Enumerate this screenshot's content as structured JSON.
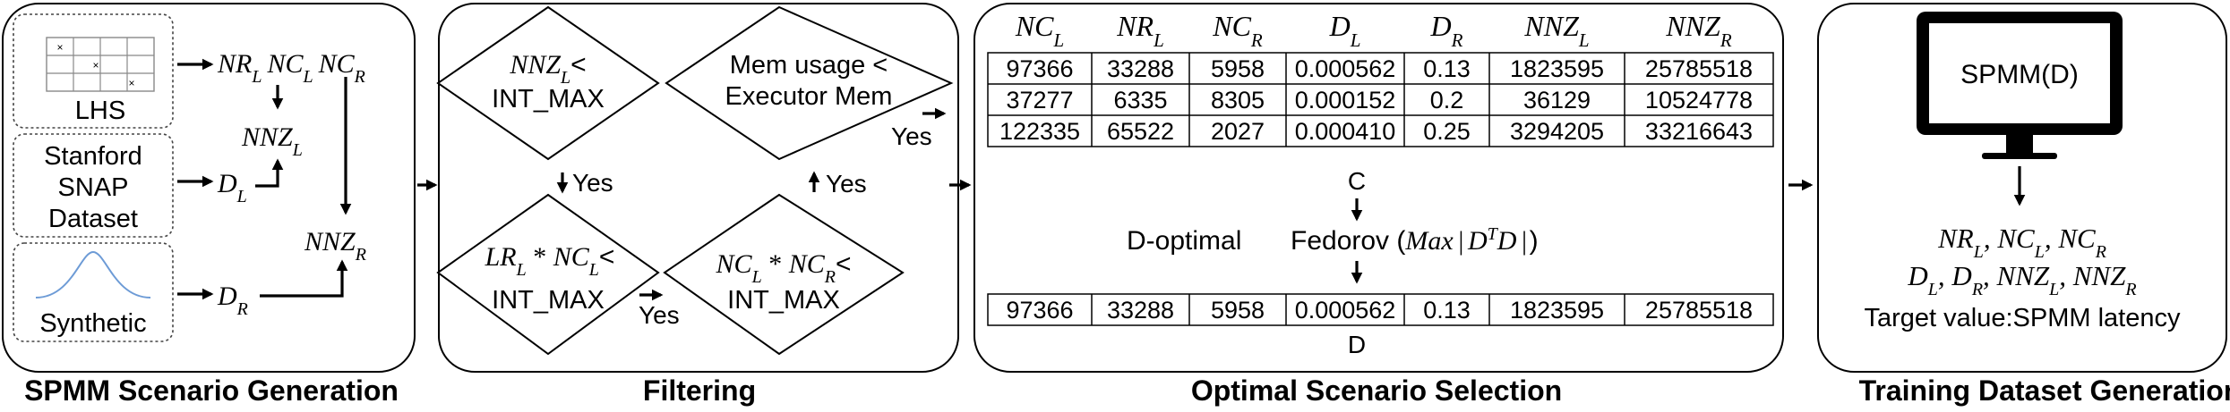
{
  "stages": {
    "generation": "SPMM Scenario Generation",
    "filtering": "Filtering",
    "selection": "Optimal Scenario Selection",
    "training": "Training Dataset Generation"
  },
  "generation": {
    "lhs": "LHS",
    "lhs_mark": "×",
    "snap": [
      "Stanford",
      "SNAP",
      "Dataset"
    ],
    "synthetic": "Synthetic",
    "vars": {
      "NR": "NR",
      "NC": "NC",
      "NNZ": "NNZ",
      "D": "D",
      "sub_L": "L",
      "sub_R": "R"
    }
  },
  "filtering": {
    "mem_condition": [
      "Mem usage <",
      "Executor Mem"
    ],
    "int_max": "INT_MAX",
    "lt": "<",
    "star": " * ",
    "LR": "LR",
    "yes": "Yes"
  },
  "selection": {
    "table_headers": [
      {
        "base": "NC",
        "sub": "L"
      },
      {
        "base": "NR",
        "sub": "L"
      },
      {
        "base": "NC",
        "sub": "R"
      },
      {
        "base": "D",
        "sub": "L"
      },
      {
        "base": "D",
        "sub": "R"
      },
      {
        "base": "NNZ",
        "sub": "L"
      },
      {
        "base": "NNZ",
        "sub": "R"
      }
    ],
    "table_c": [
      [
        "97366",
        "33288",
        "5958",
        "0.000562",
        "0.13",
        "1823595",
        "25785518"
      ],
      [
        "37277",
        "6335",
        "8305",
        "0.000152",
        "0.2",
        "36129",
        "10524778"
      ],
      [
        "122335",
        "65522",
        "2027",
        "0.000410",
        "0.25",
        "3294205",
        "33216643"
      ]
    ],
    "label_c": "C",
    "method_d_optimal": "D-optimal",
    "method_fedorov": "Fedorov (",
    "formula": {
      "max": "Max",
      "bar": "|",
      "d": "D",
      "sup_t": "T",
      "close": ")"
    },
    "table_d": [
      [
        "97366",
        "33288",
        "5958",
        "0.000562",
        "0.13",
        "1823595",
        "25785518"
      ]
    ],
    "label_d": "D"
  },
  "training": {
    "monitor_label": "SPMM(D)",
    "features_line1": [
      {
        "base": "NR",
        "sub": "L"
      },
      {
        "base": "NC",
        "sub": "L"
      },
      {
        "base": "NC",
        "sub": "R"
      }
    ],
    "features_line2": [
      {
        "base": "D",
        "sub": "L"
      },
      {
        "base": "D",
        "sub": "R"
      },
      {
        "base": "NNZ",
        "sub": "L"
      },
      {
        "base": "NNZ",
        "sub": "R"
      }
    ],
    "separator": ", ",
    "target": "Target value:SPMM latency"
  }
}
